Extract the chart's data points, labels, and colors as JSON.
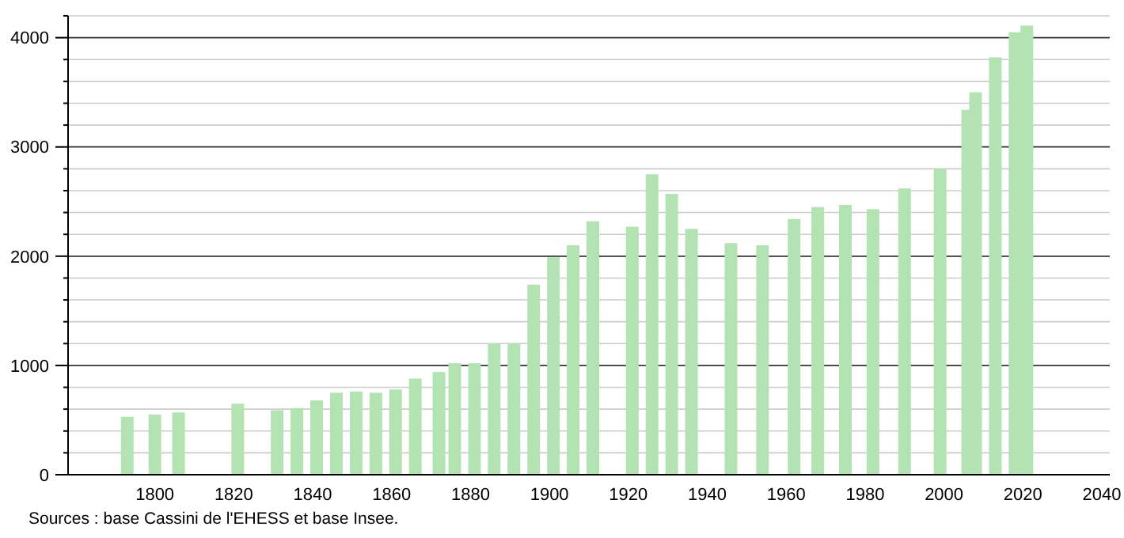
{
  "chart_data": {
    "type": "bar",
    "x": [
      1793,
      1800,
      1806,
      1821,
      1831,
      1836,
      1841,
      1846,
      1851,
      1856,
      1861,
      1866,
      1872,
      1876,
      1881,
      1886,
      1891,
      1896,
      1901,
      1906,
      1911,
      1921,
      1926,
      1931,
      1936,
      1946,
      1954,
      1962,
      1968,
      1975,
      1982,
      1990,
      1999,
      2006,
      2008,
      2013,
      2018,
      2021
    ],
    "values": [
      530,
      550,
      570,
      650,
      590,
      610,
      680,
      750,
      760,
      750,
      780,
      880,
      940,
      1020,
      1020,
      1200,
      1200,
      1740,
      1990,
      2100,
      2320,
      2270,
      2750,
      2570,
      2250,
      2120,
      2100,
      2340,
      2450,
      2470,
      2430,
      2620,
      2800,
      3340,
      3500,
      3820,
      4050,
      4110
    ],
    "color": "#b3e3b3",
    "xlim": [
      1778,
      2042
    ],
    "xticks": [
      1800,
      1820,
      1840,
      1860,
      1880,
      1900,
      1920,
      1940,
      1960,
      1980,
      2000,
      2020,
      2040
    ],
    "ylim": [
      0,
      4200
    ],
    "yticks": [
      0,
      {
        "value": 200,
        "label": null
      },
      {
        "value": 400,
        "label": null
      },
      {
        "value": 600,
        "label": null
      },
      {
        "value": 800,
        "label": null
      },
      1000,
      {
        "value": 1200,
        "label": null
      },
      {
        "value": 1400,
        "label": null
      },
      {
        "value": 1600,
        "label": null
      },
      {
        "value": 1800,
        "label": null
      },
      2000,
      {
        "value": 2200,
        "label": null
      },
      {
        "value": 2400,
        "label": null
      },
      {
        "value": 2600,
        "label": null
      },
      {
        "value": 2800,
        "label": null
      },
      3000,
      {
        "value": 3200,
        "label": null
      },
      {
        "value": 3400,
        "label": null
      },
      {
        "value": 3600,
        "label": null
      },
      {
        "value": 3800,
        "label": null
      },
      4000,
      {
        "value": 4200,
        "label": null
      }
    ],
    "grid": "y",
    "annotations": [
      "Sources : base Cassini de l'EHESS et base Insee."
    ]
  }
}
